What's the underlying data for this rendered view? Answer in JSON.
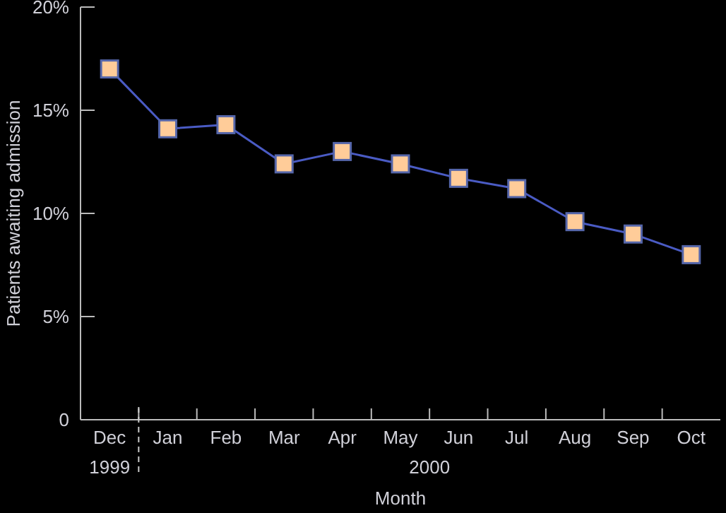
{
  "chart_data": {
    "type": "line",
    "xlabel": "Month",
    "ylabel": "Patients awaiting admission",
    "categories": [
      "Dec",
      "Jan",
      "Feb",
      "Mar",
      "Apr",
      "May",
      "Jun",
      "Jul",
      "Aug",
      "Sep",
      "Oct"
    ],
    "series": [
      {
        "color": "#4a5bc4",
        "values": [
          17.0,
          14.1,
          14.3,
          12.4,
          13.0,
          12.4,
          11.7,
          11.2,
          9.6,
          9.0,
          8.0
        ]
      }
    ],
    "ylim": [
      0,
      20
    ],
    "yticks": [
      {
        "value": 0,
        "label": "0"
      },
      {
        "value": 5,
        "label": "5%"
      },
      {
        "value": 10,
        "label": "10%"
      },
      {
        "value": 15,
        "label": "15%"
      },
      {
        "value": 20,
        "label": "20%"
      }
    ],
    "annotations": [
      "1999",
      "2000"
    ],
    "marker": "square",
    "grid": false
  }
}
